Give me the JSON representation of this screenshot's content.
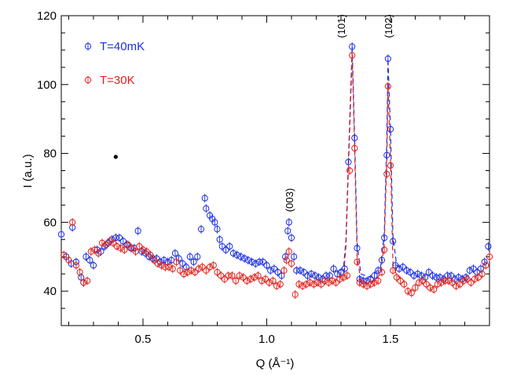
{
  "chart_data": {
    "type": "scatter",
    "title": "",
    "xlabel": "Q (Å⁻¹)",
    "ylabel": "I (a.u.)",
    "xlim": [
      0.17,
      1.9
    ],
    "ylim": [
      30,
      120
    ],
    "x_ticks": [
      0.5,
      1.0,
      1.5
    ],
    "x_tick_labels": [
      "0.5",
      "1.0",
      "1.5"
    ],
    "y_ticks": [
      40,
      60,
      80,
      100,
      120
    ],
    "y_tick_labels": [
      "40",
      "60",
      "80",
      "100",
      "120"
    ],
    "grid": false,
    "legend_position": "top-left",
    "series": [
      {
        "name": "T=40mK",
        "color": "#1a2fe0",
        "marker": "open-circle-with-errorbar",
        "points": [
          [
            0.17,
            56.5
          ],
          [
            0.19,
            50.0
          ],
          [
            0.21,
            48.0
          ],
          [
            0.215,
            58.5
          ],
          [
            0.23,
            48.5
          ],
          [
            0.25,
            44.0
          ],
          [
            0.26,
            42.5
          ],
          [
            0.27,
            50.0
          ],
          [
            0.285,
            49.0
          ],
          [
            0.3,
            47.5
          ],
          [
            0.315,
            52.0
          ],
          [
            0.33,
            51.5
          ],
          [
            0.345,
            53.0
          ],
          [
            0.36,
            54.0
          ],
          [
            0.375,
            55.0
          ],
          [
            0.39,
            55.5
          ],
          [
            0.405,
            55.5
          ],
          [
            0.42,
            54.5
          ],
          [
            0.435,
            53.5
          ],
          [
            0.45,
            52.5
          ],
          [
            0.465,
            52.5
          ],
          [
            0.48,
            57.5
          ],
          [
            0.495,
            51.5
          ],
          [
            0.51,
            51.0
          ],
          [
            0.525,
            50.0
          ],
          [
            0.54,
            49.5
          ],
          [
            0.555,
            49.5
          ],
          [
            0.57,
            48.5
          ],
          [
            0.585,
            49.0
          ],
          [
            0.6,
            48.5
          ],
          [
            0.615,
            49.0
          ],
          [
            0.63,
            51.0
          ],
          [
            0.645,
            49.5
          ],
          [
            0.66,
            48.0
          ],
          [
            0.675,
            47.0
          ],
          [
            0.69,
            50.0
          ],
          [
            0.705,
            48.5
          ],
          [
            0.72,
            50.0
          ],
          [
            0.735,
            58.0
          ],
          [
            0.75,
            67.0
          ],
          [
            0.755,
            64.0
          ],
          [
            0.77,
            62.0
          ],
          [
            0.78,
            61.0
          ],
          [
            0.79,
            60.0
          ],
          [
            0.8,
            58.0
          ],
          [
            0.81,
            55.0
          ],
          [
            0.82,
            53.0
          ],
          [
            0.835,
            52.0
          ],
          [
            0.85,
            53.0
          ],
          [
            0.865,
            51.0
          ],
          [
            0.88,
            50.5
          ],
          [
            0.895,
            50.0
          ],
          [
            0.91,
            49.5
          ],
          [
            0.925,
            49.0
          ],
          [
            0.94,
            48.5
          ],
          [
            0.955,
            48.0
          ],
          [
            0.97,
            48.5
          ],
          [
            0.985,
            48.5
          ],
          [
            1.0,
            47.5
          ],
          [
            1.015,
            46.0
          ],
          [
            1.03,
            46.5
          ],
          [
            1.045,
            45.5
          ],
          [
            1.06,
            44.5
          ],
          [
            1.075,
            50.0
          ],
          [
            1.085,
            57.5
          ],
          [
            1.09,
            60.0
          ],
          [
            1.1,
            55.5
          ],
          [
            1.11,
            50.0
          ],
          [
            1.12,
            46.0
          ],
          [
            1.135,
            46.0
          ],
          [
            1.15,
            45.5
          ],
          [
            1.165,
            44.5
          ],
          [
            1.18,
            45.0
          ],
          [
            1.195,
            44.5
          ],
          [
            1.21,
            44.0
          ],
          [
            1.225,
            43.5
          ],
          [
            1.24,
            44.5
          ],
          [
            1.255,
            44.5
          ],
          [
            1.27,
            46.5
          ],
          [
            1.285,
            45.0
          ],
          [
            1.3,
            45.5
          ],
          [
            1.315,
            46.5
          ],
          [
            1.33,
            77.5
          ],
          [
            1.345,
            111.0
          ],
          [
            1.355,
            84.5
          ],
          [
            1.365,
            52.5
          ],
          [
            1.375,
            43.5
          ],
          [
            1.39,
            43.0
          ],
          [
            1.405,
            43.0
          ],
          [
            1.42,
            43.5
          ],
          [
            1.435,
            44.5
          ],
          [
            1.45,
            46.0
          ],
          [
            1.465,
            49.0
          ],
          [
            1.475,
            55.5
          ],
          [
            1.485,
            79.5
          ],
          [
            1.49,
            107.5
          ],
          [
            1.5,
            87.0
          ],
          [
            1.51,
            54.5
          ],
          [
            1.52,
            47.5
          ],
          [
            1.535,
            46.5
          ],
          [
            1.55,
            47.0
          ],
          [
            1.565,
            46.0
          ],
          [
            1.58,
            45.5
          ],
          [
            1.595,
            44.5
          ],
          [
            1.61,
            45.0
          ],
          [
            1.625,
            44.5
          ],
          [
            1.64,
            44.0
          ],
          [
            1.655,
            45.5
          ],
          [
            1.67,
            44.5
          ],
          [
            1.685,
            44.0
          ],
          [
            1.7,
            44.0
          ],
          [
            1.715,
            43.5
          ],
          [
            1.73,
            44.5
          ],
          [
            1.745,
            44.5
          ],
          [
            1.76,
            43.5
          ],
          [
            1.775,
            44.0
          ],
          [
            1.79,
            43.5
          ],
          [
            1.805,
            44.0
          ],
          [
            1.82,
            46.0
          ],
          [
            1.835,
            46.5
          ],
          [
            1.85,
            45.5
          ],
          [
            1.865,
            46.5
          ],
          [
            1.88,
            48.5
          ],
          [
            1.895,
            53.0
          ]
        ]
      },
      {
        "name": "T=30K",
        "color": "#e0201a",
        "marker": "open-circle-with-errorbar",
        "points": [
          [
            0.18,
            50.5
          ],
          [
            0.2,
            49.0
          ],
          [
            0.215,
            60.0
          ],
          [
            0.23,
            47.5
          ],
          [
            0.245,
            45.5
          ],
          [
            0.26,
            42.5
          ],
          [
            0.275,
            43.0
          ],
          [
            0.29,
            51.5
          ],
          [
            0.305,
            52.0
          ],
          [
            0.32,
            51.0
          ],
          [
            0.335,
            54.0
          ],
          [
            0.35,
            53.5
          ],
          [
            0.365,
            54.5
          ],
          [
            0.38,
            54.0
          ],
          [
            0.395,
            53.0
          ],
          [
            0.41,
            52.5
          ],
          [
            0.425,
            52.0
          ],
          [
            0.44,
            53.5
          ],
          [
            0.455,
            52.5
          ],
          [
            0.47,
            51.5
          ],
          [
            0.485,
            53.0
          ],
          [
            0.5,
            52.0
          ],
          [
            0.515,
            51.5
          ],
          [
            0.53,
            50.5
          ],
          [
            0.545,
            49.0
          ],
          [
            0.56,
            48.0
          ],
          [
            0.575,
            47.5
          ],
          [
            0.59,
            47.0
          ],
          [
            0.605,
            47.0
          ],
          [
            0.62,
            46.5
          ],
          [
            0.635,
            48.5
          ],
          [
            0.65,
            46.0
          ],
          [
            0.665,
            45.0
          ],
          [
            0.68,
            45.5
          ],
          [
            0.695,
            46.0
          ],
          [
            0.71,
            45.5
          ],
          [
            0.725,
            46.5
          ],
          [
            0.74,
            47.0
          ],
          [
            0.755,
            46.0
          ],
          [
            0.77,
            47.0
          ],
          [
            0.785,
            47.5
          ],
          [
            0.8,
            45.5
          ],
          [
            0.815,
            44.5
          ],
          [
            0.83,
            43.5
          ],
          [
            0.845,
            44.5
          ],
          [
            0.86,
            44.5
          ],
          [
            0.875,
            43.0
          ],
          [
            0.89,
            44.5
          ],
          [
            0.905,
            44.0
          ],
          [
            0.92,
            43.0
          ],
          [
            0.935,
            43.5
          ],
          [
            0.95,
            44.0
          ],
          [
            0.965,
            44.5
          ],
          [
            0.98,
            43.0
          ],
          [
            0.995,
            43.5
          ],
          [
            1.01,
            42.5
          ],
          [
            1.025,
            43.0
          ],
          [
            1.04,
            41.5
          ],
          [
            1.055,
            42.0
          ],
          [
            1.07,
            46.0
          ],
          [
            1.08,
            49.0
          ],
          [
            1.09,
            51.5
          ],
          [
            1.1,
            48.0
          ],
          [
            1.115,
            39.0
          ],
          [
            1.13,
            42.0
          ],
          [
            1.145,
            41.5
          ],
          [
            1.16,
            42.0
          ],
          [
            1.175,
            42.5
          ],
          [
            1.19,
            42.0
          ],
          [
            1.205,
            42.5
          ],
          [
            1.22,
            42.0
          ],
          [
            1.235,
            43.0
          ],
          [
            1.25,
            42.5
          ],
          [
            1.265,
            43.0
          ],
          [
            1.28,
            42.5
          ],
          [
            1.295,
            43.5
          ],
          [
            1.31,
            44.0
          ],
          [
            1.325,
            44.5
          ],
          [
            1.335,
            75.0
          ],
          [
            1.345,
            108.5
          ],
          [
            1.355,
            81.5
          ],
          [
            1.365,
            48.5
          ],
          [
            1.375,
            42.5
          ],
          [
            1.39,
            42.0
          ],
          [
            1.405,
            41.5
          ],
          [
            1.42,
            42.0
          ],
          [
            1.435,
            42.5
          ],
          [
            1.45,
            43.0
          ],
          [
            1.465,
            45.5
          ],
          [
            1.475,
            52.0
          ],
          [
            1.485,
            74.0
          ],
          [
            1.49,
            99.5
          ],
          [
            1.5,
            76.5
          ],
          [
            1.51,
            46.0
          ],
          [
            1.525,
            44.0
          ],
          [
            1.54,
            43.0
          ],
          [
            1.555,
            42.0
          ],
          [
            1.57,
            40.0
          ],
          [
            1.585,
            39.5
          ],
          [
            1.6,
            41.0
          ],
          [
            1.615,
            42.5
          ],
          [
            1.63,
            43.0
          ],
          [
            1.645,
            42.0
          ],
          [
            1.66,
            41.0
          ],
          [
            1.675,
            40.5
          ],
          [
            1.69,
            42.0
          ],
          [
            1.705,
            42.5
          ],
          [
            1.72,
            43.0
          ],
          [
            1.735,
            43.0
          ],
          [
            1.75,
            42.5
          ],
          [
            1.765,
            41.5
          ],
          [
            1.78,
            42.0
          ],
          [
            1.795,
            43.0
          ],
          [
            1.81,
            43.5
          ],
          [
            1.825,
            42.5
          ],
          [
            1.84,
            43.5
          ],
          [
            1.855,
            44.0
          ],
          [
            1.87,
            45.0
          ],
          [
            1.885,
            47.5
          ],
          [
            1.9,
            50.0
          ]
        ]
      }
    ],
    "fit_lines": [
      {
        "name": "fit-40mK",
        "color": "#1a2fe0",
        "dash": "dashed",
        "points": [
          [
            1.29,
            46.0
          ],
          [
            1.31,
            46.5
          ],
          [
            1.32,
            55.0
          ],
          [
            1.33,
            78.0
          ],
          [
            1.345,
            111.0
          ],
          [
            1.355,
            85.0
          ],
          [
            1.365,
            54.0
          ],
          [
            1.38,
            45.0
          ],
          [
            1.42,
            44.0
          ],
          [
            1.46,
            47.0
          ],
          [
            1.475,
            57.0
          ],
          [
            1.485,
            84.0
          ],
          [
            1.49,
            107.5
          ],
          [
            1.5,
            87.0
          ],
          [
            1.51,
            56.0
          ],
          [
            1.525,
            47.5
          ],
          [
            1.55,
            46.5
          ]
        ]
      },
      {
        "name": "fit-30K",
        "color": "#e0201a",
        "dash": "dashed",
        "points": [
          [
            1.29,
            44.0
          ],
          [
            1.31,
            44.5
          ],
          [
            1.32,
            53.0
          ],
          [
            1.33,
            75.0
          ],
          [
            1.345,
            108.5
          ],
          [
            1.355,
            82.0
          ],
          [
            1.365,
            50.0
          ],
          [
            1.38,
            43.0
          ],
          [
            1.42,
            42.0
          ],
          [
            1.46,
            45.0
          ],
          [
            1.475,
            54.0
          ],
          [
            1.485,
            78.0
          ],
          [
            1.49,
            99.5
          ],
          [
            1.5,
            78.0
          ],
          [
            1.51,
            48.0
          ],
          [
            1.525,
            44.5
          ],
          [
            1.55,
            43.5
          ]
        ]
      }
    ],
    "peak_annotations": [
      {
        "label": "(003)",
        "x": 1.09,
        "y": 63.0
      },
      {
        "label": "(101)",
        "x": 1.3,
        "y": 113.5
      },
      {
        "label": "(102)",
        "x": 1.49,
        "y": 113.5
      }
    ],
    "marker_dot": {
      "x": 0.39,
      "y": 79.0,
      "color": "#000000"
    },
    "legend": [
      {
        "label": "T=40mK",
        "color": "#1a2fe0"
      },
      {
        "label": "T=30K",
        "color": "#e0201a"
      }
    ]
  }
}
